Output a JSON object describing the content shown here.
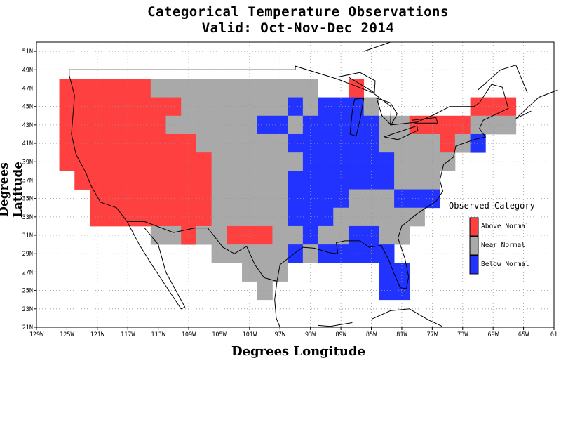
{
  "title": {
    "line1": "Categorical Temperature Observations",
    "line2": "Valid: Oct-Nov-Dec 2014"
  },
  "axes": {
    "xlabel": "Degrees Longitude",
    "ylabel": "Degrees Latitude",
    "x_ticks": [
      "129W",
      "125W",
      "121W",
      "117W",
      "113W",
      "109W",
      "105W",
      "101W",
      "97W",
      "93W",
      "89W",
      "85W",
      "81W",
      "77W",
      "73W",
      "69W",
      "65W",
      "61"
    ],
    "y_ticks": [
      "51N",
      "49N",
      "47N",
      "45N",
      "43N",
      "41N",
      "39N",
      "37N",
      "35N",
      "33N",
      "31N",
      "29N",
      "27N",
      "25N",
      "23N",
      "21N"
    ],
    "xlim": [
      -129,
      -61
    ],
    "ylim": [
      21,
      52
    ]
  },
  "legend": {
    "title": "Observed Category",
    "items": [
      {
        "label": "Above Normal",
        "color": "#ff4040"
      },
      {
        "label": "Near Normal",
        "color": "#a9a9a9"
      },
      {
        "label": "Below Normal",
        "color": "#2233ff"
      }
    ]
  },
  "chart_data": {
    "type": "heatmap",
    "cell_size_deg": 2,
    "categories": {
      "A": "Above Normal",
      "N": "Near Normal",
      "B": "Below Normal"
    },
    "cells": [
      [
        "A",
        -125,
        47
      ],
      [
        "A",
        -123,
        47
      ],
      [
        "A",
        -121,
        47
      ],
      [
        "A",
        -119,
        47
      ],
      [
        "A",
        -117,
        47
      ],
      [
        "A",
        -115,
        47
      ],
      [
        "N",
        -113,
        47
      ],
      [
        "N",
        -111,
        47
      ],
      [
        "N",
        -109,
        47
      ],
      [
        "N",
        -107,
        47
      ],
      [
        "N",
        -105,
        47
      ],
      [
        "N",
        -103,
        47
      ],
      [
        "N",
        -101,
        47
      ],
      [
        "N",
        -99,
        47
      ],
      [
        "N",
        -97,
        47
      ],
      [
        "N",
        -95,
        47
      ],
      [
        "N",
        -93,
        47
      ],
      [
        "A",
        -87,
        47
      ],
      [
        "A",
        -125,
        45
      ],
      [
        "A",
        -123,
        45
      ],
      [
        "A",
        -121,
        45
      ],
      [
        "A",
        -119,
        45
      ],
      [
        "A",
        -117,
        45
      ],
      [
        "A",
        -115,
        45
      ],
      [
        "A",
        -113,
        45
      ],
      [
        "A",
        -111,
        45
      ],
      [
        "N",
        -109,
        45
      ],
      [
        "N",
        -107,
        45
      ],
      [
        "N",
        -105,
        45
      ],
      [
        "N",
        -103,
        45
      ],
      [
        "N",
        -101,
        45
      ],
      [
        "N",
        -99,
        45
      ],
      [
        "N",
        -97,
        45
      ],
      [
        "B",
        -95,
        45
      ],
      [
        "N",
        -93,
        45
      ],
      [
        "B",
        -91,
        45
      ],
      [
        "B",
        -89,
        45
      ],
      [
        "B",
        -87,
        45
      ],
      [
        "N",
        -85,
        45
      ],
      [
        "A",
        -71,
        45
      ],
      [
        "A",
        -69,
        45
      ],
      [
        "A",
        -67,
        45
      ],
      [
        "A",
        -125,
        43
      ],
      [
        "A",
        -123,
        43
      ],
      [
        "A",
        -121,
        43
      ],
      [
        "A",
        -119,
        43
      ],
      [
        "A",
        -117,
        43
      ],
      [
        "A",
        -115,
        43
      ],
      [
        "A",
        -113,
        43
      ],
      [
        "N",
        -111,
        43
      ],
      [
        "N",
        -109,
        43
      ],
      [
        "N",
        -107,
        43
      ],
      [
        "N",
        -105,
        43
      ],
      [
        "N",
        -103,
        43
      ],
      [
        "N",
        -101,
        43
      ],
      [
        "B",
        -99,
        43
      ],
      [
        "B",
        -97,
        43
      ],
      [
        "N",
        -95,
        43
      ],
      [
        "B",
        -93,
        43
      ],
      [
        "B",
        -91,
        43
      ],
      [
        "B",
        -89,
        43
      ],
      [
        "B",
        -87,
        43
      ],
      [
        "B",
        -85,
        43
      ],
      [
        "N",
        -83,
        43
      ],
      [
        "N",
        -81,
        43
      ],
      [
        "A",
        -79,
        43
      ],
      [
        "A",
        -77,
        43
      ],
      [
        "A",
        -75,
        43
      ],
      [
        "A",
        -73,
        43
      ],
      [
        "N",
        -71,
        43
      ],
      [
        "N",
        -69,
        43
      ],
      [
        "N",
        -67,
        43
      ],
      [
        "A",
        -125,
        41
      ],
      [
        "A",
        -123,
        41
      ],
      [
        "A",
        -121,
        41
      ],
      [
        "A",
        -119,
        41
      ],
      [
        "A",
        -117,
        41
      ],
      [
        "A",
        -115,
        41
      ],
      [
        "A",
        -113,
        41
      ],
      [
        "A",
        -111,
        41
      ],
      [
        "A",
        -109,
        41
      ],
      [
        "N",
        -107,
        41
      ],
      [
        "N",
        -105,
        41
      ],
      [
        "N",
        -103,
        41
      ],
      [
        "N",
        -101,
        41
      ],
      [
        "N",
        -99,
        41
      ],
      [
        "N",
        -97,
        41
      ],
      [
        "B",
        -95,
        41
      ],
      [
        "B",
        -93,
        41
      ],
      [
        "B",
        -91,
        41
      ],
      [
        "B",
        -89,
        41
      ],
      [
        "B",
        -87,
        41
      ],
      [
        "B",
        -85,
        41
      ],
      [
        "N",
        -83,
        41
      ],
      [
        "N",
        -81,
        41
      ],
      [
        "N",
        -79,
        41
      ],
      [
        "N",
        -77,
        41
      ],
      [
        "A",
        -75,
        41
      ],
      [
        "N",
        -73,
        41
      ],
      [
        "B",
        -71,
        41
      ],
      [
        "A",
        -125,
        39
      ],
      [
        "A",
        -123,
        39
      ],
      [
        "A",
        -121,
        39
      ],
      [
        "A",
        -119,
        39
      ],
      [
        "A",
        -117,
        39
      ],
      [
        "A",
        -115,
        39
      ],
      [
        "A",
        -113,
        39
      ],
      [
        "A",
        -111,
        39
      ],
      [
        "A",
        -109,
        39
      ],
      [
        "A",
        -107,
        39
      ],
      [
        "N",
        -105,
        39
      ],
      [
        "N",
        -103,
        39
      ],
      [
        "N",
        -101,
        39
      ],
      [
        "N",
        -99,
        39
      ],
      [
        "N",
        -97,
        39
      ],
      [
        "N",
        -95,
        39
      ],
      [
        "B",
        -93,
        39
      ],
      [
        "B",
        -91,
        39
      ],
      [
        "B",
        -89,
        39
      ],
      [
        "B",
        -87,
        39
      ],
      [
        "B",
        -85,
        39
      ],
      [
        "B",
        -83,
        39
      ],
      [
        "N",
        -81,
        39
      ],
      [
        "N",
        -79,
        39
      ],
      [
        "N",
        -77,
        39
      ],
      [
        "N",
        -75,
        39
      ],
      [
        "A",
        -123,
        37
      ],
      [
        "A",
        -121,
        37
      ],
      [
        "A",
        -119,
        37
      ],
      [
        "A",
        -117,
        37
      ],
      [
        "A",
        -115,
        37
      ],
      [
        "A",
        -113,
        37
      ],
      [
        "A",
        -111,
        37
      ],
      [
        "A",
        -109,
        37
      ],
      [
        "A",
        -107,
        37
      ],
      [
        "N",
        -105,
        37
      ],
      [
        "N",
        -103,
        37
      ],
      [
        "N",
        -101,
        37
      ],
      [
        "N",
        -99,
        37
      ],
      [
        "N",
        -97,
        37
      ],
      [
        "B",
        -95,
        37
      ],
      [
        "B",
        -93,
        37
      ],
      [
        "B",
        -91,
        37
      ],
      [
        "B",
        -89,
        37
      ],
      [
        "B",
        -87,
        37
      ],
      [
        "B",
        -85,
        37
      ],
      [
        "B",
        -83,
        37
      ],
      [
        "N",
        -81,
        37
      ],
      [
        "N",
        -79,
        37
      ],
      [
        "N",
        -77,
        37
      ],
      [
        "A",
        -121,
        35
      ],
      [
        "A",
        -119,
        35
      ],
      [
        "A",
        -117,
        35
      ],
      [
        "A",
        -115,
        35
      ],
      [
        "A",
        -113,
        35
      ],
      [
        "A",
        -111,
        35
      ],
      [
        "A",
        -109,
        35
      ],
      [
        "A",
        -107,
        35
      ],
      [
        "N",
        -105,
        35
      ],
      [
        "N",
        -103,
        35
      ],
      [
        "N",
        -101,
        35
      ],
      [
        "N",
        -99,
        35
      ],
      [
        "N",
        -97,
        35
      ],
      [
        "B",
        -95,
        35
      ],
      [
        "B",
        -93,
        35
      ],
      [
        "B",
        -91,
        35
      ],
      [
        "B",
        -89,
        35
      ],
      [
        "N",
        -87,
        35
      ],
      [
        "N",
        -85,
        35
      ],
      [
        "N",
        -83,
        35
      ],
      [
        "B",
        -81,
        35
      ],
      [
        "B",
        -79,
        35
      ],
      [
        "B",
        -77,
        35
      ],
      [
        "A",
        -121,
        33
      ],
      [
        "A",
        -119,
        33
      ],
      [
        "A",
        -117,
        33
      ],
      [
        "A",
        -115,
        33
      ],
      [
        "A",
        -113,
        33
      ],
      [
        "A",
        -111,
        33
      ],
      [
        "A",
        -109,
        33
      ],
      [
        "A",
        -107,
        33
      ],
      [
        "N",
        -105,
        33
      ],
      [
        "N",
        -103,
        33
      ],
      [
        "N",
        -101,
        33
      ],
      [
        "N",
        -99,
        33
      ],
      [
        "N",
        -97,
        33
      ],
      [
        "B",
        -95,
        33
      ],
      [
        "B",
        -93,
        33
      ],
      [
        "B",
        -91,
        33
      ],
      [
        "N",
        -89,
        33
      ],
      [
        "N",
        -87,
        33
      ],
      [
        "N",
        -85,
        33
      ],
      [
        "N",
        -83,
        33
      ],
      [
        "N",
        -81,
        33
      ],
      [
        "N",
        -79,
        33
      ],
      [
        "N",
        -113,
        31
      ],
      [
        "N",
        -111,
        31
      ],
      [
        "A",
        -109,
        31
      ],
      [
        "N",
        -107,
        31
      ],
      [
        "N",
        -105,
        31
      ],
      [
        "A",
        -103,
        31
      ],
      [
        "A",
        -101,
        31
      ],
      [
        "A",
        -99,
        31
      ],
      [
        "N",
        -97,
        31
      ],
      [
        "N",
        -95,
        31
      ],
      [
        "B",
        -93,
        31
      ],
      [
        "N",
        -91,
        31
      ],
      [
        "N",
        -89,
        31
      ],
      [
        "B",
        -87,
        31
      ],
      [
        "B",
        -85,
        31
      ],
      [
        "N",
        -83,
        31
      ],
      [
        "N",
        -81,
        31
      ],
      [
        "N",
        -105,
        29
      ],
      [
        "N",
        -103,
        29
      ],
      [
        "N",
        -101,
        29
      ],
      [
        "N",
        -99,
        29
      ],
      [
        "N",
        -97,
        29
      ],
      [
        "B",
        -95,
        29
      ],
      [
        "N",
        -93,
        29
      ],
      [
        "B",
        -91,
        29
      ],
      [
        "B",
        -89,
        29
      ],
      [
        "B",
        -87,
        29
      ],
      [
        "B",
        -85,
        29
      ],
      [
        "B",
        -83,
        29
      ],
      [
        "N",
        -101,
        27
      ],
      [
        "N",
        -99,
        27
      ],
      [
        "N",
        -97,
        27
      ],
      [
        "B",
        -83,
        27
      ],
      [
        "B",
        -81,
        27
      ],
      [
        "N",
        -99,
        25
      ],
      [
        "B",
        -83,
        25
      ],
      [
        "B",
        -81,
        25
      ]
    ]
  }
}
